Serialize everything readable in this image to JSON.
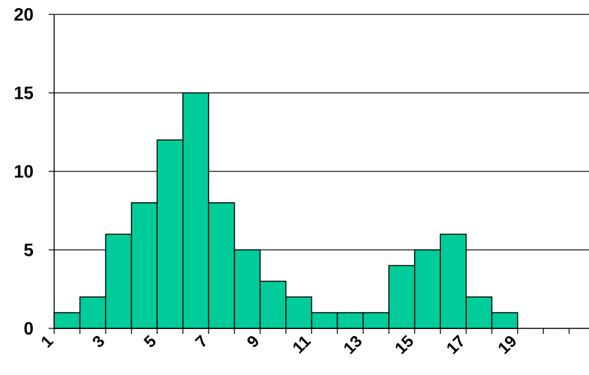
{
  "chart_data": {
    "type": "bar",
    "title": "",
    "xlabel": "",
    "ylabel": "",
    "categories": [
      "1",
      "2",
      "3",
      "4",
      "5",
      "6",
      "7",
      "8",
      "9",
      "10",
      "11",
      "12",
      "13",
      "14",
      "15",
      "16",
      "17",
      "18",
      "19",
      "20"
    ],
    "values": [
      1,
      2,
      6,
      8,
      12,
      15,
      8,
      5,
      3,
      2,
      1,
      1,
      1,
      4,
      5,
      6,
      2,
      1,
      0,
      0
    ],
    "x_tick_labels": [
      "1",
      "3",
      "5",
      "7",
      "9",
      "11",
      "13",
      "15",
      "17",
      "19"
    ],
    "y_ticks": [
      "0",
      "5",
      "10",
      "15",
      "20"
    ],
    "ylim": [
      0,
      20
    ],
    "grid": true,
    "bar_color": "#00CC99",
    "bar_edge_color": "#000000"
  }
}
